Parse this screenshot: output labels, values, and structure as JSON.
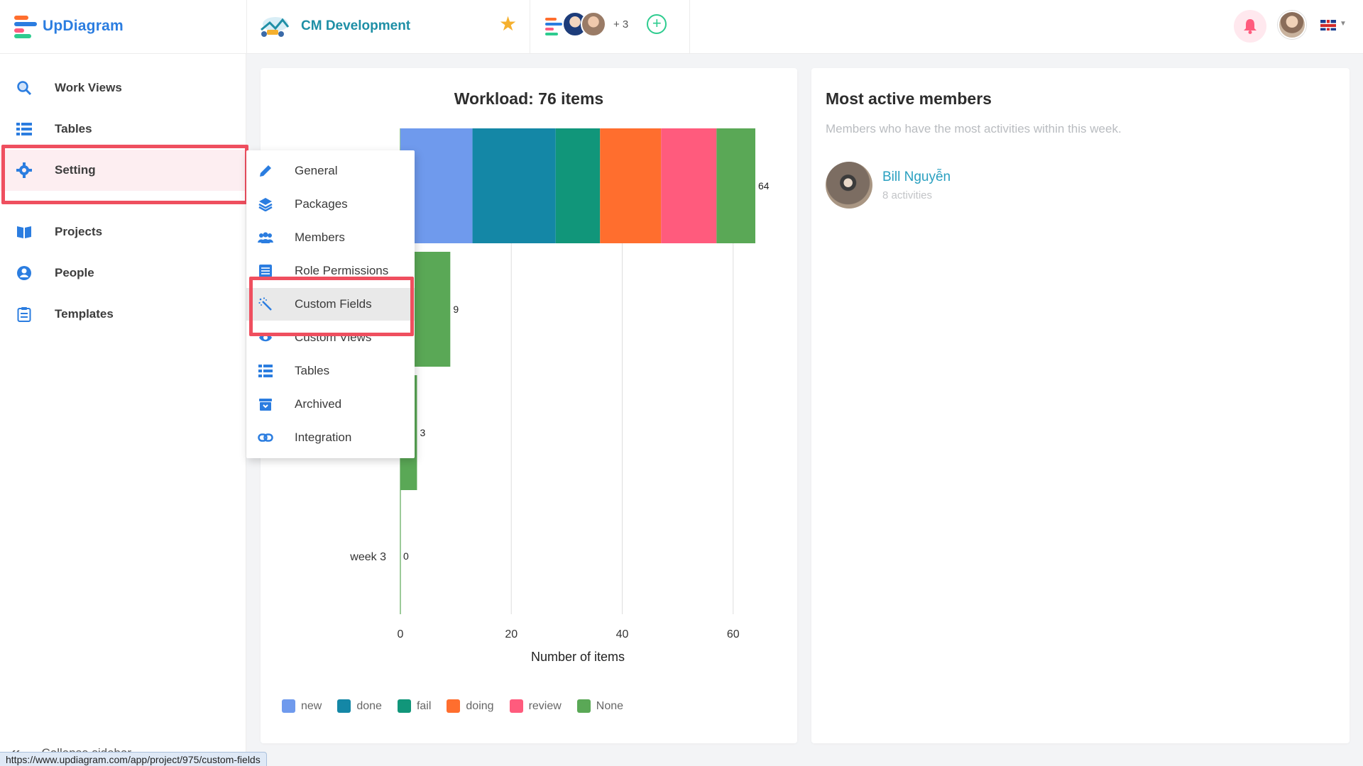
{
  "app": {
    "brand": "UpDiagram"
  },
  "header": {
    "project_name": "CM Development",
    "members_more": "+ 3",
    "add_member_symbol": "+"
  },
  "sidebar": {
    "items": [
      {
        "label": "Work Views",
        "icon": "search-icon"
      },
      {
        "label": "Tables",
        "icon": "list-icon"
      },
      {
        "label": "Setting",
        "icon": "gear-icon",
        "active": true
      },
      {
        "label": "Projects",
        "icon": "book-icon"
      },
      {
        "label": "People",
        "icon": "person-icon"
      },
      {
        "label": "Templates",
        "icon": "clipboard-icon"
      }
    ],
    "collapse_label": "Collapse sidebar",
    "collapse_symbol": "«"
  },
  "settings_menu": {
    "items": [
      {
        "label": "General",
        "icon": "pencil-icon"
      },
      {
        "label": "Packages",
        "icon": "layers-icon"
      },
      {
        "label": "Members",
        "icon": "users-icon"
      },
      {
        "label": "Role Permissions",
        "icon": "list-icon"
      },
      {
        "label": "Custom Fields",
        "icon": "magic-wand-icon",
        "hovered": true
      },
      {
        "label": "Custom Views",
        "icon": "eye-icon"
      },
      {
        "label": "Tables",
        "icon": "list-icon"
      },
      {
        "label": "Archived",
        "icon": "archive-icon"
      },
      {
        "label": "Integration",
        "icon": "link-icon"
      }
    ]
  },
  "status_bar": {
    "url": "https://www.updiagram.com/app/project/975/custom-fields"
  },
  "chart_data": {
    "type": "bar",
    "orientation": "horizontal",
    "stacked": true,
    "title": "Workload: 76 items",
    "xlabel": "Number of items",
    "ylabel": "",
    "xlim": [
      0,
      64
    ],
    "xticks": [
      0,
      20,
      40,
      60
    ],
    "categories": [
      "",
      "",
      "",
      "week 3"
    ],
    "series": [
      {
        "name": "new",
        "color": "#6f9aed",
        "values": [
          13,
          0,
          0,
          0
        ]
      },
      {
        "name": "done",
        "color": "#1487a6",
        "values": [
          15,
          0,
          0,
          0
        ]
      },
      {
        "name": "fail",
        "color": "#11967a",
        "values": [
          8,
          0,
          0,
          0
        ]
      },
      {
        "name": "doing",
        "color": "#ff6e2e",
        "values": [
          11,
          0,
          0,
          0
        ]
      },
      {
        "name": "review",
        "color": "#ff5b7d",
        "values": [
          10,
          0,
          0,
          0
        ]
      },
      {
        "name": "None",
        "color": "#5aa856",
        "values": [
          7,
          9,
          3,
          0
        ]
      }
    ],
    "totals": [
      64,
      9,
      3,
      0
    ],
    "legend_position": "bottom-left",
    "grid": true
  },
  "members_panel": {
    "title": "Most active members",
    "subtitle": "Members who have the most activities within this week.",
    "members": [
      {
        "name": "Bill Nguyễn",
        "activities": "8 activities"
      }
    ]
  }
}
